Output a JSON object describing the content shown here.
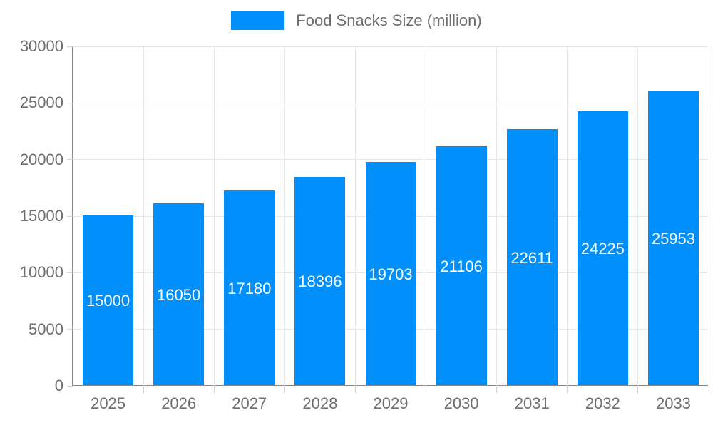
{
  "chart_data": {
    "type": "bar",
    "title": "Food Snacks Size (million)",
    "categories": [
      "2025",
      "2026",
      "2027",
      "2028",
      "2029",
      "2030",
      "2031",
      "2032",
      "2033"
    ],
    "series": [
      {
        "name": "Food Snacks Size (million)",
        "values": [
          15000,
          16050,
          17180,
          18396,
          19703,
          21106,
          22611,
          24225,
          25953
        ]
      }
    ],
    "xlabel": "",
    "ylabel": "",
    "ylim": [
      0,
      30000
    ],
    "y_ticks": [
      0,
      5000,
      10000,
      15000,
      20000,
      25000,
      30000
    ],
    "grid": true,
    "legend_position": "top",
    "value_labels": "inside-center",
    "colors": {
      "bar": "#008FFB",
      "bar_value_label": "#FFFFFF",
      "axis_label": "#6E6E6E",
      "legend_text": "#6E6E6E",
      "grid_line": "#E7E7E7",
      "tick_mark": "#D2D2D2",
      "axis_line": "#8A8A8A",
      "background": "#FFFFFF"
    }
  }
}
